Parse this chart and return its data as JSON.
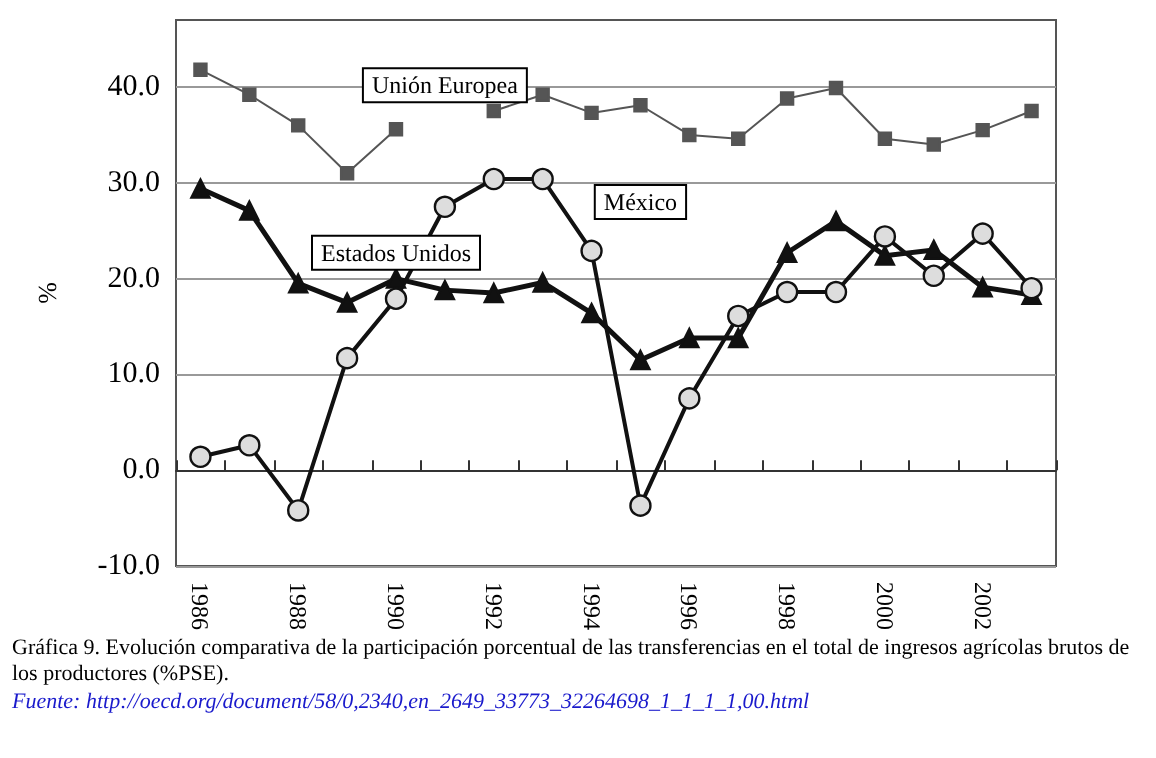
{
  "chart_data": {
    "type": "line",
    "ylabel": "%",
    "categories": [
      "1986",
      null,
      "1988",
      null,
      "1990",
      null,
      "1992",
      null,
      "1994",
      null,
      "1996",
      null,
      "1998",
      null,
      "2000",
      null,
      "2002",
      null
    ],
    "series": [
      {
        "name": "Unión Europea",
        "color": "#555555",
        "marker": "square",
        "values": [
          41.8,
          39.2,
          36.0,
          31.0,
          35.6,
          null,
          37.5,
          39.2,
          37.3,
          38.1,
          35.0,
          34.6,
          38.8,
          39.9,
          34.6,
          34.0,
          35.5,
          37.5
        ]
      },
      {
        "name": "Estados Unidos",
        "color": "#111111",
        "marker": "triangle",
        "values": [
          29.4,
          27.1,
          19.5,
          17.5,
          20.0,
          18.8,
          18.5,
          19.6,
          16.4,
          11.5,
          13.8,
          13.8,
          22.7,
          26.0,
          22.4,
          23.0,
          19.1,
          18.3
        ]
      },
      {
        "name": "México",
        "color": "#111111",
        "marker": "circle",
        "values": [
          1.4,
          2.6,
          -4.2,
          11.7,
          17.9,
          27.5,
          30.4,
          30.4,
          22.9,
          -3.7,
          7.5,
          16.1,
          18.6,
          18.6,
          24.4,
          20.3,
          24.7,
          19.0
        ]
      }
    ],
    "ylim": [
      -10,
      47
    ],
    "yticks": [
      {
        "value": -10,
        "label": "-10.0"
      },
      {
        "value": 0,
        "label": "0.0"
      },
      {
        "value": 10,
        "label": "10.0"
      },
      {
        "value": 20,
        "label": "20.0"
      },
      {
        "value": 30,
        "label": "30.0"
      },
      {
        "value": 40,
        "label": "40.0"
      }
    ],
    "grid": "y",
    "legend": false,
    "line_style": "solid",
    "annotations": [
      "Gráfica 9.  Evolución comparativa de la participación porcentual de las transferencias en el total de ingresos agrícolas brutos de los productores (%PSE).",
      "Fuente:  http://oecd.org/document/58/0,2340,en_2649_33773_32264698_1_1_1_1,00.html"
    ]
  }
}
